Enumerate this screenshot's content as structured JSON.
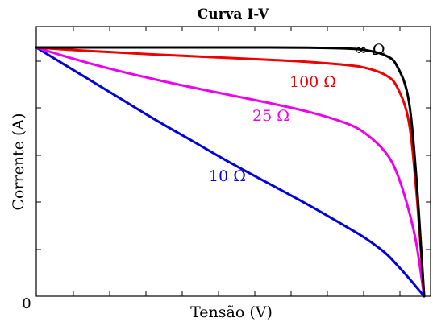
{
  "chart_data": {
    "type": "line",
    "title": "Curva I-V",
    "xlabel": "Tensão (V)",
    "ylabel": "Corrente (A)",
    "xlim": [
      0,
      1
    ],
    "ylim": [
      0,
      1.0
    ],
    "origin_label": "0",
    "grid": false,
    "x": [
      0,
      0.1,
      0.2,
      0.3,
      0.4,
      0.5,
      0.6,
      0.7,
      0.8,
      0.85,
      0.9,
      0.93,
      0.96,
      0.98,
      1.0
    ],
    "series": [
      {
        "name": "∞ Ω",
        "color": "#000000",
        "values": [
          0.95,
          0.95,
          0.95,
          0.95,
          0.95,
          0.95,
          0.95,
          0.949,
          0.946,
          0.94,
          0.92,
          0.88,
          0.75,
          0.45,
          0.0
        ]
      },
      {
        "name": "100 Ω",
        "color": "#ee0000",
        "values": [
          0.95,
          0.94,
          0.932,
          0.924,
          0.917,
          0.91,
          0.903,
          0.895,
          0.883,
          0.872,
          0.845,
          0.8,
          0.67,
          0.4,
          0.0
        ]
      },
      {
        "name": "25 Ω",
        "color": "#ee00ee",
        "values": [
          0.95,
          0.905,
          0.865,
          0.83,
          0.798,
          0.768,
          0.738,
          0.705,
          0.66,
          0.62,
          0.55,
          0.47,
          0.33,
          0.2,
          0.0
        ]
      },
      {
        "name": "10 Ω",
        "color": "#0000dd",
        "values": [
          0.95,
          0.86,
          0.77,
          0.68,
          0.595,
          0.51,
          0.43,
          0.35,
          0.265,
          0.22,
          0.165,
          0.12,
          0.07,
          0.035,
          0.0
        ]
      }
    ]
  }
}
